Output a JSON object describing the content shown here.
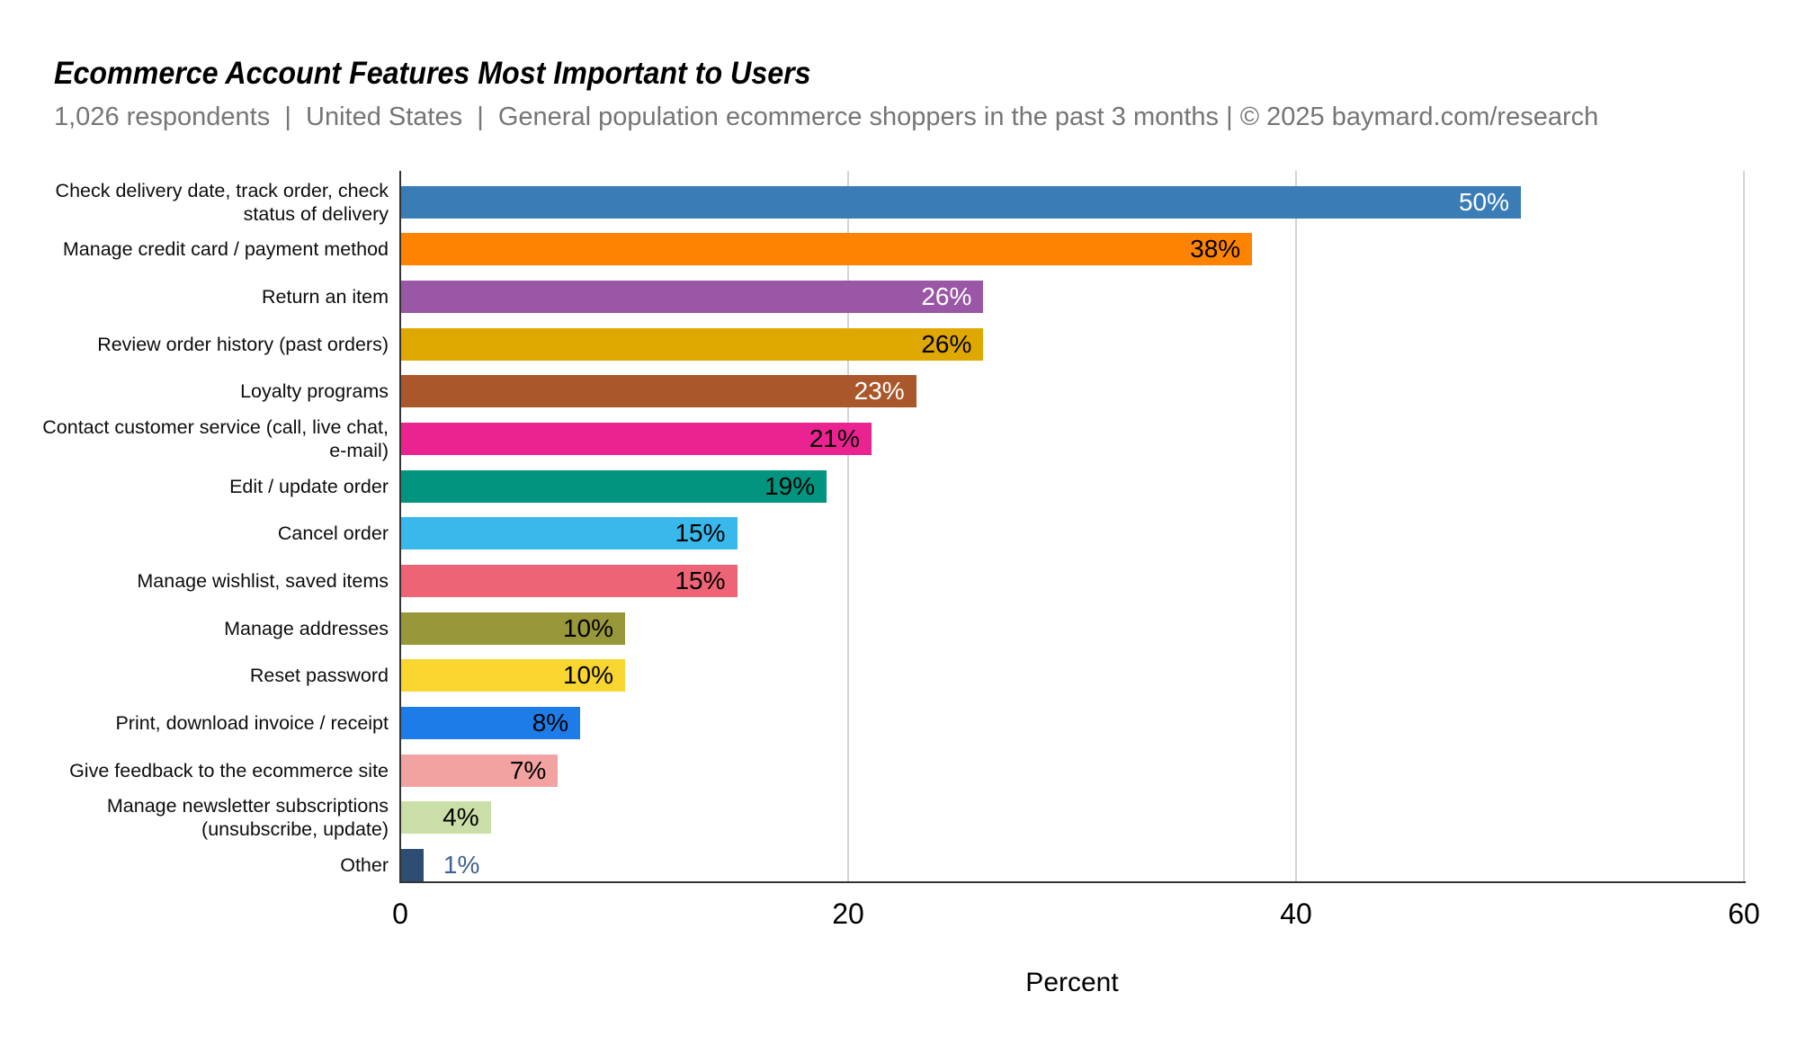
{
  "header": {
    "title": "Ecommerce Account Features Most Important to Users",
    "subtitle": "1,026 respondents  |  United States  |  General population ecommerce shoppers in the past 3 months | © 2025 baymard.com/research"
  },
  "colors": {
    "title_text": "#000000",
    "subtitle_text": "#757575",
    "axis_line": "#333333",
    "gridline": "#d4d4d4",
    "tick_text": "#000000",
    "category_text": "#0d0d0d",
    "outside_value_text": "#3d6190"
  },
  "chart_data": {
    "type": "bar",
    "orientation": "horizontal",
    "title": "Ecommerce Account Features Most Important to Users",
    "subtitle": "1,026 respondents  |  United States  |  General population ecommerce shoppers in the past 3 months | © 2025 baymard.com/research",
    "xlabel": "Percent",
    "xlim": [
      0,
      60
    ],
    "xticks": [
      0,
      20,
      40,
      60
    ],
    "grid": "vertical-light-gray-at-20-40-60",
    "legend": "none",
    "categories": [
      "Check delivery date, track order, check status of delivery",
      "Manage credit card / payment method",
      "Return an item",
      "Review order history (past orders)",
      "Loyalty programs",
      "Contact customer service (call, live chat, e-mail)",
      "Edit / update order",
      "Cancel order",
      "Manage wishlist, saved items",
      "Manage addresses",
      "Reset password",
      "Print, download invoice / receipt",
      "Give feedback to the ecommerce site",
      "Manage newsletter subscriptions (unsubscribe, update)",
      "Other"
    ],
    "values": [
      50,
      38,
      26,
      26,
      23,
      21,
      19,
      15,
      15,
      10,
      10,
      8,
      7,
      4,
      1
    ],
    "bars": [
      {
        "label": "Check delivery date, track order, check status of delivery",
        "value": 50,
        "display": "50%",
        "color": "#3a7cb6",
        "label_color": "#ffffff",
        "label_inside": true
      },
      {
        "label": "Manage credit card / payment method",
        "value": 38,
        "display": "38%",
        "color": "#fe8301",
        "label_color": "#000000",
        "label_inside": true
      },
      {
        "label": "Return an item",
        "value": 26,
        "display": "26%",
        "color": "#9a57a6",
        "label_color": "#ffffff",
        "label_inside": true
      },
      {
        "label": "Review order history (past orders)",
        "value": 26,
        "display": "26%",
        "color": "#dfa801",
        "label_color": "#000000",
        "label_inside": true
      },
      {
        "label": "Loyalty programs",
        "value": 23,
        "display": "23%",
        "color": "#aa572b",
        "label_color": "#ffffff",
        "label_inside": true
      },
      {
        "label": "Contact customer service (call, live chat, e-mail)",
        "value": 21,
        "display": "21%",
        "color": "#ea2390",
        "label_color": "#000000",
        "label_inside": true
      },
      {
        "label": "Edit / update order",
        "value": 19,
        "display": "19%",
        "color": "#019580",
        "label_color": "#000000",
        "label_inside": true
      },
      {
        "label": "Cancel order",
        "value": 15,
        "display": "15%",
        "color": "#39b9eb",
        "label_color": "#000000",
        "label_inside": true
      },
      {
        "label": "Manage wishlist, saved items",
        "value": 15,
        "display": "15%",
        "color": "#ee6477",
        "label_color": "#000000",
        "label_inside": true
      },
      {
        "label": "Manage addresses",
        "value": 10,
        "display": "10%",
        "color": "#98973a",
        "label_color": "#000000",
        "label_inside": true
      },
      {
        "label": "Reset password",
        "value": 10,
        "display": "10%",
        "color": "#f8d52f",
        "label_color": "#000000",
        "label_inside": true
      },
      {
        "label": "Print, download invoice / receipt",
        "value": 8,
        "display": "8%",
        "color": "#1e7ce8",
        "label_color": "#000000",
        "label_inside": true
      },
      {
        "label": "Give feedback to the ecommerce site",
        "value": 7,
        "display": "7%",
        "color": "#f1a2a1",
        "label_color": "#000000",
        "label_inside": true
      },
      {
        "label": "Manage newsletter subscriptions (unsubscribe, update)",
        "value": 4,
        "display": "4%",
        "color": "#cadfa8",
        "label_color": "#000000",
        "label_inside": true
      },
      {
        "label": "Other",
        "value": 1,
        "display": "1%",
        "color": "#2e4d72",
        "label_color": "#3d6190",
        "label_inside": false
      }
    ]
  }
}
